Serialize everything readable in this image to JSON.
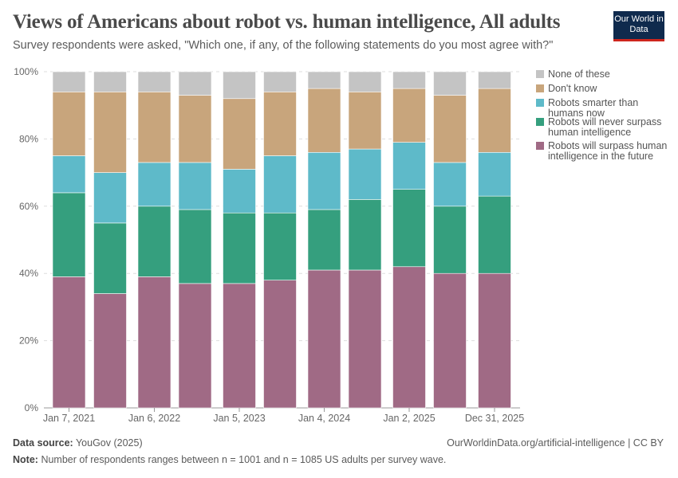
{
  "header": {
    "title": "Views of Americans about robot vs. human intelligence, All adults",
    "subtitle": "Survey respondents were asked, \"Which one, if any, of the following statements do you most agree with?\"",
    "logo": "Our World in Data"
  },
  "footer": {
    "source_label": "Data source:",
    "source": "YouGov (2025)",
    "url": "OurWorldinData.org/artificial-intelligence | CC BY",
    "note_label": "Note:",
    "note": "Number of respondents ranges between n = 1001 and n = 1085 US adults per survey wave."
  },
  "chart_data": {
    "type": "bar",
    "stacked": true,
    "ylim": [
      0,
      100
    ],
    "yticks": [
      "0%",
      "20%",
      "40%",
      "60%",
      "80%",
      "100%"
    ],
    "grid": true,
    "legend": "right",
    "categories": [
      "Jan 7, 2021",
      "",
      "Jan 6, 2022",
      "",
      "Jan 5, 2023",
      "",
      "Jan 4, 2024",
      "",
      "Jan 2, 2025",
      "",
      "Dec 31, 2025"
    ],
    "series": [
      {
        "name": "Robots will surpass human intelligence in the future",
        "color": "#a06a85",
        "values": [
          39,
          34,
          39,
          37,
          37,
          38,
          41,
          41,
          42,
          40,
          40
        ]
      },
      {
        "name": "Robots will never surpass human intelligence",
        "color": "#359f7e",
        "values": [
          25,
          21,
          21,
          22,
          21,
          20,
          18,
          21,
          23,
          20,
          23
        ]
      },
      {
        "name": "Robots smarter than humans now",
        "color": "#5ebac9",
        "values": [
          11,
          15,
          13,
          14,
          13,
          17,
          17,
          15,
          14,
          13,
          13
        ]
      },
      {
        "name": "Don't know",
        "color": "#c8a57c",
        "values": [
          19,
          24,
          21,
          20,
          21,
          19,
          19,
          17,
          16,
          20,
          19
        ]
      },
      {
        "name": "None of these",
        "color": "#c4c4c4",
        "values": [
          6,
          6,
          6,
          7,
          8,
          6,
          5,
          6,
          5,
          7,
          5
        ]
      }
    ]
  }
}
